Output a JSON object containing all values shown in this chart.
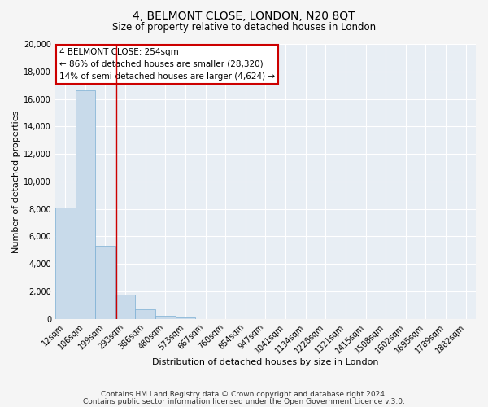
{
  "title": "4, BELMONT CLOSE, LONDON, N20 8QT",
  "subtitle": "Size of property relative to detached houses in London",
  "xlabel": "Distribution of detached houses by size in London",
  "ylabel": "Number of detached properties",
  "bar_color": "#c8daea",
  "bar_edge_color": "#7bafd4",
  "categories": [
    "12sqm",
    "106sqm",
    "199sqm",
    "293sqm",
    "386sqm",
    "480sqm",
    "573sqm",
    "667sqm",
    "760sqm",
    "854sqm",
    "947sqm",
    "1041sqm",
    "1134sqm",
    "1228sqm",
    "1321sqm",
    "1415sqm",
    "1508sqm",
    "1602sqm",
    "1695sqm",
    "1789sqm",
    "1882sqm"
  ],
  "values": [
    8100,
    16600,
    5300,
    1750,
    700,
    230,
    110,
    0,
    0,
    0,
    0,
    0,
    0,
    0,
    0,
    0,
    0,
    0,
    0,
    0,
    0
  ],
  "ylim": [
    0,
    20000
  ],
  "yticks": [
    0,
    2000,
    4000,
    6000,
    8000,
    10000,
    12000,
    14000,
    16000,
    18000,
    20000
  ],
  "vline_x": 2.56,
  "vline_color": "#cc0000",
  "annotation_title": "4 BELMONT CLOSE: 254sqm",
  "annotation_line1": "← 86% of detached houses are smaller (28,320)",
  "annotation_line2": "14% of semi-detached houses are larger (4,624) →",
  "annotation_box_color": "#ffffff",
  "annotation_box_edge": "#cc0000",
  "footer1": "Contains HM Land Registry data © Crown copyright and database right 2024.",
  "footer2": "Contains public sector information licensed under the Open Government Licence v.3.0.",
  "fig_background": "#f5f5f5",
  "plot_background": "#e8eef4",
  "grid_color": "#ffffff",
  "title_fontsize": 10,
  "subtitle_fontsize": 8.5,
  "axis_label_fontsize": 8,
  "tick_fontsize": 7,
  "footer_fontsize": 6.5
}
